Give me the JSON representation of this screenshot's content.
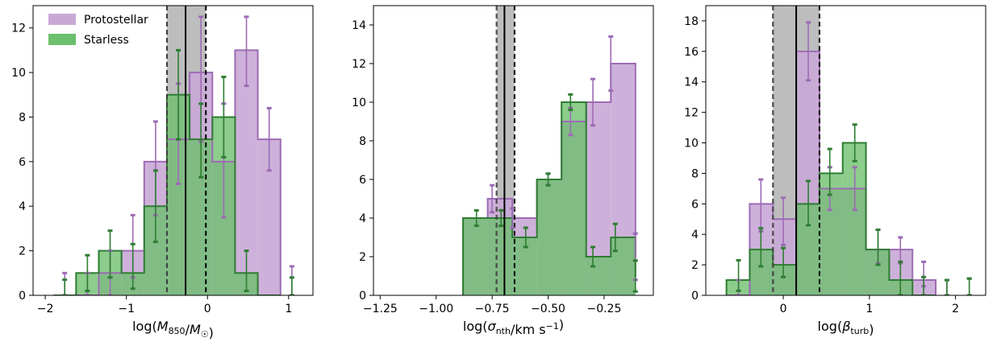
{
  "colors": {
    "protostellar_fill": "#c9a8d6",
    "protostellar_edge": "#9d6bb5",
    "starless_fill": "#6cbf6c",
    "starless_edge": "#2e7d32",
    "band_fill": "#bdbdbd"
  },
  "legend": {
    "protostellar": "Protostellar",
    "starless": "Starless"
  },
  "chart_data": [
    {
      "type": "bar",
      "xlabel": "log(M850/M☉)",
      "ylabel": "",
      "xlim": [
        -2.15,
        1.3
      ],
      "ylim": [
        0,
        13
      ],
      "xticks": [
        -2,
        -1,
        0,
        1
      ],
      "xtick_labels": [
        "−2",
        "−1",
        "0",
        "1"
      ],
      "yticks": [
        0,
        2,
        4,
        6,
        8,
        10,
        12
      ],
      "bin_edges": [
        -1.9,
        -1.62,
        -1.34,
        -1.06,
        -0.78,
        -0.5,
        -0.22,
        0.06,
        0.34,
        0.62,
        0.9
      ],
      "protostellar": [
        0,
        0,
        1,
        2,
        6,
        7,
        10,
        6,
        11,
        7
      ],
      "starless": [
        0,
        1,
        2,
        1,
        4,
        9,
        7,
        8,
        1,
        0
      ],
      "protostellar_err_bars": [
        {
          "x": -1.76,
          "low": 0,
          "high": 1
        },
        {
          "x": -1.48,
          "low": 0,
          "high": 1
        },
        {
          "x": -1.2,
          "low": 0,
          "high": 2
        },
        {
          "x": -0.92,
          "low": 0.8,
          "high": 3.6
        },
        {
          "x": -0.64,
          "low": 3.6,
          "high": 7.8
        },
        {
          "x": -0.36,
          "low": 5.0,
          "high": 9.5
        },
        {
          "x": -0.08,
          "low": 6.9,
          "high": 12.5
        },
        {
          "x": 0.2,
          "low": 3.5,
          "high": 8.6
        },
        {
          "x": 0.48,
          "low": 9.4,
          "high": 12.5
        },
        {
          "x": 0.76,
          "low": 5.6,
          "high": 8.4
        },
        {
          "x": 1.04,
          "low": 0,
          "high": 1.3
        }
      ],
      "starless_err_bars": [
        {
          "x": -1.76,
          "low": 0,
          "high": 0.7
        },
        {
          "x": -1.48,
          "low": 0.2,
          "high": 1.8
        },
        {
          "x": -1.2,
          "low": 0.8,
          "high": 2.9
        },
        {
          "x": -0.92,
          "low": 0.3,
          "high": 2.3
        },
        {
          "x": -0.64,
          "low": 2.4,
          "high": 5.6
        },
        {
          "x": -0.36,
          "low": 7.0,
          "high": 11.0
        },
        {
          "x": -0.08,
          "low": 5.3,
          "high": 8.6
        },
        {
          "x": 0.2,
          "low": 6.2,
          "high": 9.8
        },
        {
          "x": 0.48,
          "low": 0.2,
          "high": 2.0
        },
        {
          "x": 1.04,
          "low": 0,
          "high": 0.8
        }
      ],
      "band": [
        -0.5,
        -0.02
      ],
      "median": -0.27,
      "has_legend": true
    },
    {
      "type": "bar",
      "xlabel": "log(σnth/km s−1)",
      "ylabel": "",
      "xlim": [
        -1.28,
        -0.03
      ],
      "ylim": [
        0,
        15
      ],
      "xticks": [
        -1.25,
        -1.0,
        -0.75,
        -0.5,
        -0.25
      ],
      "xtick_labels": [
        "−1.25",
        "−1.00",
        "−0.75",
        "−0.50",
        "−0.25"
      ],
      "yticks": [
        0,
        2,
        4,
        6,
        8,
        10,
        12,
        14
      ],
      "bin_edges": [
        -0.88,
        -0.77,
        -0.66,
        -0.55,
        -0.44,
        -0.33,
        -0.22,
        -0.11
      ],
      "protostellar": [
        4,
        5,
        4,
        6,
        9,
        10,
        12,
        2
      ],
      "starless": [
        4,
        4,
        3,
        6,
        10,
        2,
        3,
        1
      ],
      "protostellar_err_bars": [
        {
          "x": -1.18,
          "low": 0,
          "high": 0
        },
        {
          "x": -1.1,
          "low": 0,
          "high": 0
        },
        {
          "x": -1.02,
          "low": 0,
          "high": 0
        },
        {
          "x": -0.93,
          "low": 0,
          "high": 0
        },
        {
          "x": -0.75,
          "low": 4.3,
          "high": 5.7
        },
        {
          "x": -0.66,
          "low": 3.5,
          "high": 4.5
        },
        {
          "x": -0.5,
          "low": 5.7,
          "high": 6.3
        },
        {
          "x": -0.4,
          "low": 8.3,
          "high": 9.7
        },
        {
          "x": -0.3,
          "low": 8.8,
          "high": 11.2
        },
        {
          "x": -0.22,
          "low": 10.6,
          "high": 13.4
        },
        {
          "x": -0.11,
          "low": 0.8,
          "high": 3.2
        }
      ],
      "starless_err_bars": [
        {
          "x": -0.82,
          "low": 3.6,
          "high": 4.4
        },
        {
          "x": -0.71,
          "low": 3.6,
          "high": 4.4
        },
        {
          "x": -0.6,
          "low": 2.5,
          "high": 3.5
        },
        {
          "x": -0.5,
          "low": 5.7,
          "high": 6.3
        },
        {
          "x": -0.4,
          "low": 9.6,
          "high": 10.4
        },
        {
          "x": -0.3,
          "low": 1.5,
          "high": 2.5
        },
        {
          "x": -0.2,
          "low": 2.3,
          "high": 3.7
        },
        {
          "x": -0.11,
          "low": 0.2,
          "high": 1.8
        }
      ],
      "band": [
        -0.73,
        -0.65
      ],
      "median": -0.695,
      "has_legend": false
    },
    {
      "type": "bar",
      "xlabel": "log(βturb)",
      "ylabel": "",
      "xlim": [
        -0.9,
        2.35
      ],
      "ylim": [
        0,
        19
      ],
      "xticks": [
        0,
        1,
        2
      ],
      "xtick_labels": [
        "0",
        "1",
        "2"
      ],
      "yticks": [
        0,
        2,
        4,
        6,
        8,
        10,
        12,
        14,
        16,
        18
      ],
      "bin_edges": [
        -0.66,
        -0.39,
        -0.12,
        0.15,
        0.42,
        0.69,
        0.96,
        1.23,
        1.5,
        1.77
      ],
      "protostellar": [
        0,
        6,
        5,
        16,
        7,
        7,
        3,
        3,
        1
      ],
      "starless": [
        1,
        3,
        2,
        6,
        8,
        10,
        3,
        1,
        0
      ],
      "protostellar_err_bars": [
        {
          "x": -0.52,
          "low": 0,
          "high": 1.0
        },
        {
          "x": -0.26,
          "low": 4.2,
          "high": 7.6
        },
        {
          "x": 0.0,
          "low": 3.3,
          "high": 6.4
        },
        {
          "x": 0.29,
          "low": 14.1,
          "high": 17.9
        },
        {
          "x": 0.54,
          "low": 5.6,
          "high": 8.4
        },
        {
          "x": 0.83,
          "low": 5.6,
          "high": 8.4
        },
        {
          "x": 1.1,
          "low": 2.1,
          "high": 4.3
        },
        {
          "x": 1.36,
          "low": 2.1,
          "high": 3.8
        },
        {
          "x": 1.63,
          "low": 0.6,
          "high": 2.2
        },
        {
          "x": 1.9,
          "low": 0,
          "high": 1.0
        },
        {
          "x": 2.16,
          "low": 0,
          "high": 1.1
        }
      ],
      "starless_err_bars": [
        {
          "x": -0.52,
          "low": 0.3,
          "high": 2.3
        },
        {
          "x": -0.26,
          "low": 1.9,
          "high": 4.4
        },
        {
          "x": 0.0,
          "low": 1.2,
          "high": 3.1
        },
        {
          "x": 0.29,
          "low": 4.6,
          "high": 7.5
        },
        {
          "x": 0.54,
          "low": 6.6,
          "high": 9.6
        },
        {
          "x": 0.83,
          "low": 8.8,
          "high": 11.2
        },
        {
          "x": 1.1,
          "low": 2.0,
          "high": 4.3
        },
        {
          "x": 1.36,
          "low": 0,
          "high": 2.2
        },
        {
          "x": 1.63,
          "low": 0,
          "high": 1.2
        },
        {
          "x": 1.9,
          "low": 0,
          "high": 1.0
        },
        {
          "x": 2.16,
          "low": 0,
          "high": 1.1
        }
      ],
      "band": [
        -0.12,
        0.42
      ],
      "median": 0.15,
      "has_legend": false
    }
  ]
}
